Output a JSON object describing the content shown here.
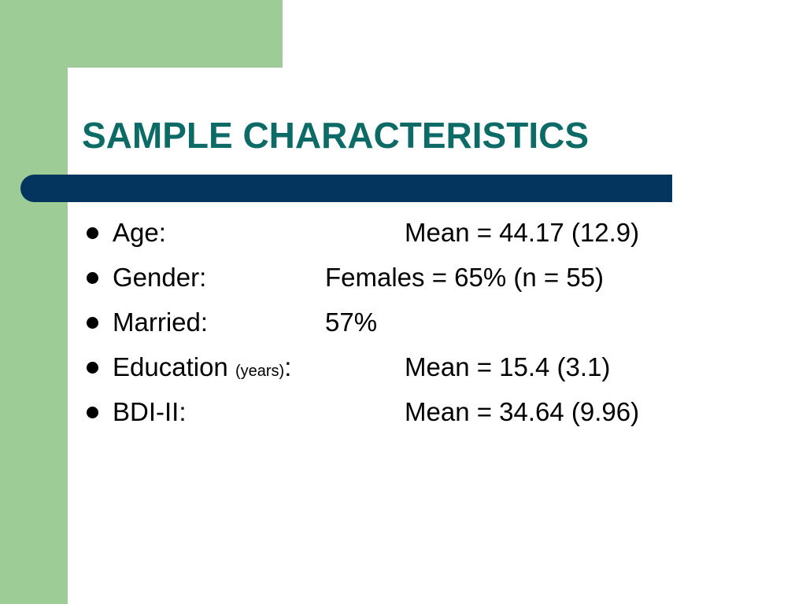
{
  "colors": {
    "green_accent": "#9dcc96",
    "title_teal": "#0c6b66",
    "bar_navy": "#03355f",
    "text": "#000000"
  },
  "title": "SAMPLE CHARACTERISTICS",
  "bullets": [
    {
      "label": "Age:",
      "value": "Mean = 44.17 (12.9)"
    },
    {
      "label": "Gender:",
      "value": "Females = 65% (n = 55)"
    },
    {
      "label": "Married:",
      "value": "57%"
    },
    {
      "label": "Education ",
      "label_small": "(years)",
      "label_suffix": ":",
      "value": "Mean = 15.4 (3.1)"
    },
    {
      "label": "BDI-II:",
      "value": "Mean = 34.64 (9.96)"
    }
  ]
}
